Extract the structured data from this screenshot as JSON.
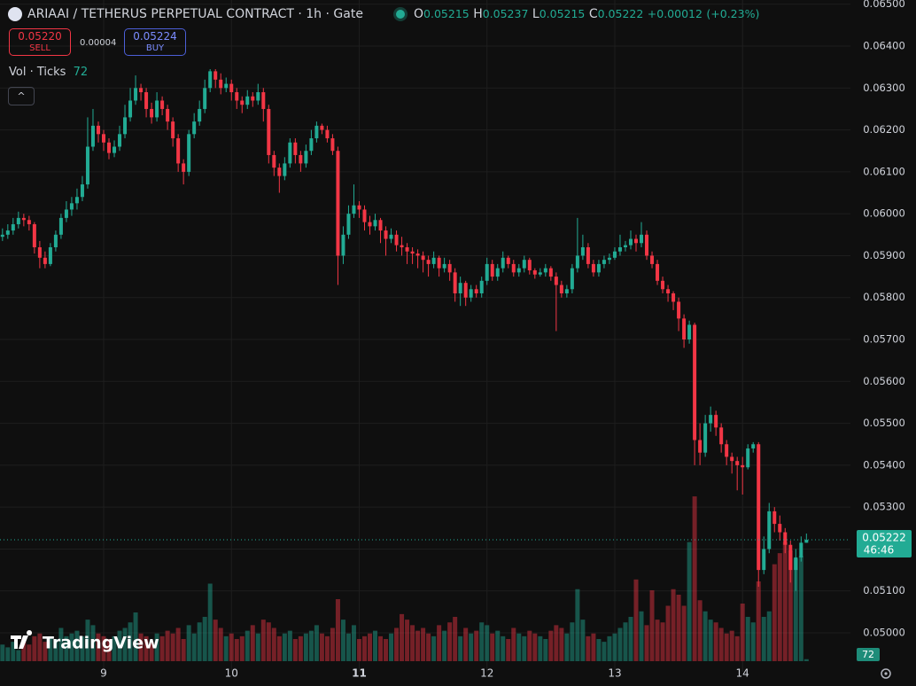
{
  "chart_data": {
    "type": "candlestick",
    "title": "ARIAAI / TETHERUS PERPETUAL CONTRACT · 1h · Gate",
    "ohlc_labels": [
      "O",
      "H",
      "L",
      "C"
    ],
    "change": "+0.00012",
    "change_pct": "(+0.23%)",
    "sell_price": "0.05220",
    "sell_label": "SELL",
    "spread": "0.00004",
    "buy_price": "0.05224",
    "buy_label": "BUY",
    "volume_label": "Vol · Ticks",
    "countdown": "46:46",
    "watermark": "TradingView",
    "up_color": "#22ab94",
    "down_color": "#f23645",
    "grid": true,
    "ylim": [
      0.04907,
      0.0651
    ],
    "yticks": [
      {
        "value": 0.05,
        "label": "0.05000"
      },
      {
        "value": 0.051,
        "label": "0.05100"
      },
      {
        "value": 0.052,
        "label": "0.05200"
      },
      {
        "value": 0.053,
        "label": "0.05300"
      },
      {
        "value": 0.054,
        "label": "0.05400"
      },
      {
        "value": 0.055,
        "label": "0.05500"
      },
      {
        "value": 0.056,
        "label": "0.05600"
      },
      {
        "value": 0.057,
        "label": "0.05700"
      },
      {
        "value": 0.058,
        "label": "0.05800"
      },
      {
        "value": 0.059,
        "label": "0.05900"
      },
      {
        "value": 0.06,
        "label": "0.06000"
      },
      {
        "value": 0.061,
        "label": "0.06100"
      },
      {
        "value": 0.062,
        "label": "0.06200"
      },
      {
        "value": 0.063,
        "label": "0.06300"
      },
      {
        "value": 0.064,
        "label": "0.06400"
      },
      {
        "value": 0.065,
        "label": "0.06500"
      }
    ],
    "vol_ylim": [
      0,
      8000
    ],
    "categories": [
      null,
      null,
      null,
      null,
      null,
      null,
      null,
      null,
      null,
      null,
      null,
      null,
      null,
      null,
      null,
      null,
      null,
      null,
      null,
      "9",
      null,
      null,
      null,
      null,
      null,
      null,
      null,
      null,
      null,
      null,
      null,
      null,
      null,
      null,
      null,
      null,
      null,
      null,
      null,
      null,
      null,
      null,
      null,
      "10",
      null,
      null,
      null,
      null,
      null,
      null,
      null,
      null,
      null,
      null,
      null,
      null,
      null,
      null,
      null,
      null,
      null,
      null,
      null,
      null,
      null,
      null,
      null,
      "11",
      null,
      null,
      null,
      null,
      null,
      null,
      null,
      null,
      null,
      null,
      null,
      null,
      null,
      null,
      null,
      null,
      null,
      null,
      null,
      null,
      null,
      null,
      null,
      "12",
      null,
      null,
      null,
      null,
      null,
      null,
      null,
      null,
      null,
      null,
      null,
      null,
      null,
      null,
      null,
      null,
      null,
      null,
      null,
      null,
      null,
      null,
      null,
      "13",
      null,
      null,
      null,
      null,
      null,
      null,
      null,
      null,
      null,
      null,
      null,
      null,
      null,
      null,
      null,
      null,
      null,
      null,
      null,
      null,
      null,
      null,
      null,
      "14",
      null,
      null,
      null,
      null,
      null,
      null,
      null,
      null,
      null,
      null,
      null,
      null
    ],
    "ohlc": [
      [
        0.05945,
        0.05965,
        0.05935,
        0.0595
      ],
      [
        0.0595,
        0.05975,
        0.0594,
        0.0596
      ],
      [
        0.0596,
        0.0599,
        0.0595,
        0.05975
      ],
      [
        0.05975,
        0.06005,
        0.05965,
        0.0599
      ],
      [
        0.0599,
        0.06,
        0.0597,
        0.05985
      ],
      [
        0.05985,
        0.05995,
        0.0596,
        0.05975
      ],
      [
        0.05975,
        0.0598,
        0.05905,
        0.0592
      ],
      [
        0.0592,
        0.05935,
        0.0587,
        0.05895
      ],
      [
        0.05895,
        0.0591,
        0.0587,
        0.0588
      ],
      [
        0.0588,
        0.0593,
        0.05875,
        0.0592
      ],
      [
        0.0592,
        0.0596,
        0.0591,
        0.0595
      ],
      [
        0.0595,
        0.06,
        0.0594,
        0.0599
      ],
      [
        0.0599,
        0.0603,
        0.0598,
        0.0601
      ],
      [
        0.0601,
        0.0604,
        0.05995,
        0.06025
      ],
      [
        0.06025,
        0.0606,
        0.0601,
        0.0604
      ],
      [
        0.0604,
        0.0609,
        0.0603,
        0.0607
      ],
      [
        0.0607,
        0.0623,
        0.0606,
        0.0616
      ],
      [
        0.0616,
        0.0625,
        0.0615,
        0.0621
      ],
      [
        0.0621,
        0.0622,
        0.0617,
        0.0619
      ],
      [
        0.0619,
        0.062,
        0.0615,
        0.0617
      ],
      [
        0.0617,
        0.0618,
        0.0613,
        0.06145
      ],
      [
        0.06145,
        0.06175,
        0.06135,
        0.0616
      ],
      [
        0.0616,
        0.0621,
        0.0615,
        0.0619
      ],
      [
        0.0619,
        0.0626,
        0.0618,
        0.0623
      ],
      [
        0.0623,
        0.063,
        0.0622,
        0.0627
      ],
      [
        0.0627,
        0.0633,
        0.0626,
        0.063
      ],
      [
        0.063,
        0.0631,
        0.0627,
        0.0629
      ],
      [
        0.0629,
        0.063,
        0.0623,
        0.0625
      ],
      [
        0.0625,
        0.06265,
        0.06215,
        0.0623
      ],
      [
        0.0623,
        0.0629,
        0.0622,
        0.0627
      ],
      [
        0.0627,
        0.0628,
        0.06235,
        0.0625
      ],
      [
        0.0625,
        0.0626,
        0.062,
        0.0622
      ],
      [
        0.0622,
        0.0623,
        0.0616,
        0.0618
      ],
      [
        0.0618,
        0.0619,
        0.061,
        0.0612
      ],
      [
        0.0612,
        0.0613,
        0.0607,
        0.061
      ],
      [
        0.061,
        0.062,
        0.0609,
        0.0619
      ],
      [
        0.0619,
        0.0624,
        0.0618,
        0.0622
      ],
      [
        0.0622,
        0.0627,
        0.0621,
        0.0625
      ],
      [
        0.0625,
        0.0632,
        0.0624,
        0.063
      ],
      [
        0.063,
        0.06345,
        0.0629,
        0.0634
      ],
      [
        0.0634,
        0.06345,
        0.063,
        0.0632
      ],
      [
        0.0632,
        0.06335,
        0.06285,
        0.063
      ],
      [
        0.063,
        0.06325,
        0.0629,
        0.0631
      ],
      [
        0.0631,
        0.0632,
        0.0627,
        0.0629
      ],
      [
        0.0629,
        0.063,
        0.0625,
        0.0627
      ],
      [
        0.0627,
        0.0628,
        0.0624,
        0.0626
      ],
      [
        0.0626,
        0.06295,
        0.0625,
        0.0628
      ],
      [
        0.0628,
        0.0629,
        0.06255,
        0.0627
      ],
      [
        0.0627,
        0.0631,
        0.0626,
        0.0629
      ],
      [
        0.0629,
        0.063,
        0.0622,
        0.0625
      ],
      [
        0.0625,
        0.0626,
        0.0612,
        0.0614
      ],
      [
        0.0614,
        0.0615,
        0.0609,
        0.0611
      ],
      [
        0.0611,
        0.0612,
        0.0605,
        0.0609
      ],
      [
        0.0609,
        0.06135,
        0.0608,
        0.0612
      ],
      [
        0.0612,
        0.0618,
        0.0611,
        0.0617
      ],
      [
        0.0617,
        0.0618,
        0.0612,
        0.0614
      ],
      [
        0.0614,
        0.0615,
        0.061,
        0.0612
      ],
      [
        0.0612,
        0.06165,
        0.0611,
        0.0615
      ],
      [
        0.0615,
        0.062,
        0.0614,
        0.0618
      ],
      [
        0.0618,
        0.0622,
        0.0617,
        0.0621
      ],
      [
        0.0621,
        0.06215,
        0.0619,
        0.062
      ],
      [
        0.062,
        0.0621,
        0.0617,
        0.0618
      ],
      [
        0.0618,
        0.0619,
        0.0614,
        0.0615
      ],
      [
        0.0615,
        0.0616,
        0.0583,
        0.059
      ],
      [
        0.059,
        0.0597,
        0.0588,
        0.0595
      ],
      [
        0.0595,
        0.0602,
        0.0594,
        0.06
      ],
      [
        0.06,
        0.0607,
        0.0599,
        0.0602
      ],
      [
        0.0602,
        0.0603,
        0.0599,
        0.0601
      ],
      [
        0.0601,
        0.0602,
        0.0596,
        0.0598
      ],
      [
        0.0598,
        0.05995,
        0.0595,
        0.0597
      ],
      [
        0.0597,
        0.06,
        0.0596,
        0.05985
      ],
      [
        0.05985,
        0.0599,
        0.0593,
        0.0596
      ],
      [
        0.0596,
        0.0597,
        0.059,
        0.0594
      ],
      [
        0.0594,
        0.05965,
        0.0593,
        0.0595
      ],
      [
        0.0595,
        0.0596,
        0.0591,
        0.05925
      ],
      [
        0.05925,
        0.05945,
        0.059,
        0.0592
      ],
      [
        0.0592,
        0.0593,
        0.0588,
        0.0591
      ],
      [
        0.0591,
        0.0592,
        0.0588,
        0.05905
      ],
      [
        0.05905,
        0.05915,
        0.0587,
        0.059
      ],
      [
        0.059,
        0.0591,
        0.0586,
        0.0589
      ],
      [
        0.0589,
        0.059,
        0.0585,
        0.0588
      ],
      [
        0.0588,
        0.0591,
        0.0587,
        0.05895
      ],
      [
        0.05895,
        0.059,
        0.0585,
        0.0587
      ],
      [
        0.0587,
        0.05895,
        0.0586,
        0.0588
      ],
      [
        0.0588,
        0.0589,
        0.0584,
        0.0586
      ],
      [
        0.0586,
        0.0587,
        0.0579,
        0.0581
      ],
      [
        0.0581,
        0.0585,
        0.0578,
        0.05835
      ],
      [
        0.05835,
        0.0584,
        0.0578,
        0.058
      ],
      [
        0.058,
        0.0583,
        0.0579,
        0.0582
      ],
      [
        0.0582,
        0.0583,
        0.058,
        0.0581
      ],
      [
        0.0581,
        0.0585,
        0.058,
        0.0584
      ],
      [
        0.0584,
        0.05895,
        0.0583,
        0.0588
      ],
      [
        0.0588,
        0.0589,
        0.0584,
        0.0585
      ],
      [
        0.0585,
        0.0588,
        0.0584,
        0.0587
      ],
      [
        0.0587,
        0.0591,
        0.0586,
        0.05895
      ],
      [
        0.05895,
        0.059,
        0.0587,
        0.0588
      ],
      [
        0.0588,
        0.0589,
        0.0585,
        0.0586
      ],
      [
        0.0586,
        0.0588,
        0.0585,
        0.0587
      ],
      [
        0.0587,
        0.059,
        0.0586,
        0.0589
      ],
      [
        0.0589,
        0.05895,
        0.05855,
        0.05865
      ],
      [
        0.05865,
        0.0587,
        0.05845,
        0.05855
      ],
      [
        0.05855,
        0.0587,
        0.0585,
        0.0586
      ],
      [
        0.0586,
        0.0588,
        0.0585,
        0.0587
      ],
      [
        0.0587,
        0.05875,
        0.0584,
        0.0585
      ],
      [
        0.0585,
        0.0586,
        0.0572,
        0.0583
      ],
      [
        0.0583,
        0.0584,
        0.058,
        0.0581
      ],
      [
        0.0581,
        0.0583,
        0.058,
        0.0582
      ],
      [
        0.0582,
        0.0588,
        0.0581,
        0.0587
      ],
      [
        0.0587,
        0.0599,
        0.0586,
        0.059
      ],
      [
        0.059,
        0.0595,
        0.0589,
        0.0592
      ],
      [
        0.0592,
        0.0593,
        0.0587,
        0.0588
      ],
      [
        0.0588,
        0.0589,
        0.0585,
        0.0586
      ],
      [
        0.0586,
        0.0589,
        0.0585,
        0.0588
      ],
      [
        0.0588,
        0.059,
        0.0587,
        0.0589
      ],
      [
        0.0589,
        0.05905,
        0.0588,
        0.05895
      ],
      [
        0.05895,
        0.0592,
        0.0589,
        0.0591
      ],
      [
        0.0591,
        0.0595,
        0.059,
        0.0592
      ],
      [
        0.0592,
        0.05935,
        0.0591,
        0.05925
      ],
      [
        0.05925,
        0.0596,
        0.05915,
        0.0594
      ],
      [
        0.0594,
        0.0595,
        0.0591,
        0.0593
      ],
      [
        0.0593,
        0.0598,
        0.0592,
        0.0595
      ],
      [
        0.0595,
        0.0596,
        0.0589,
        0.059
      ],
      [
        0.059,
        0.0591,
        0.0587,
        0.0588
      ],
      [
        0.0588,
        0.0589,
        0.0583,
        0.0584
      ],
      [
        0.0584,
        0.0585,
        0.0581,
        0.0582
      ],
      [
        0.0582,
        0.0583,
        0.0579,
        0.0581
      ],
      [
        0.0581,
        0.05815,
        0.0577,
        0.0579
      ],
      [
        0.0579,
        0.058,
        0.0572,
        0.0575
      ],
      [
        0.0575,
        0.0576,
        0.0568,
        0.057
      ],
      [
        0.057,
        0.05745,
        0.0569,
        0.05735
      ],
      [
        0.05735,
        0.0574,
        0.054,
        0.0546
      ],
      [
        0.0546,
        0.055,
        0.054,
        0.0543
      ],
      [
        0.0543,
        0.0552,
        0.0542,
        0.055
      ],
      [
        0.055,
        0.0554,
        0.0548,
        0.0552
      ],
      [
        0.0552,
        0.0553,
        0.0547,
        0.0549
      ],
      [
        0.0549,
        0.055,
        0.0543,
        0.0545
      ],
      [
        0.0545,
        0.0546,
        0.054,
        0.0542
      ],
      [
        0.0542,
        0.0543,
        0.0538,
        0.0541
      ],
      [
        0.0541,
        0.0542,
        0.0534,
        0.054
      ],
      [
        0.054,
        0.0542,
        0.0533,
        0.05395
      ],
      [
        0.05395,
        0.0545,
        0.0539,
        0.0544
      ],
      [
        0.0544,
        0.05455,
        0.0543,
        0.0545
      ],
      [
        0.0545,
        0.05455,
        0.0511,
        0.0515
      ],
      [
        0.0515,
        0.0523,
        0.0514,
        0.052
      ],
      [
        0.052,
        0.0531,
        0.0519,
        0.0529
      ],
      [
        0.0529,
        0.053,
        0.0524,
        0.0526
      ],
      [
        0.0526,
        0.0528,
        0.0522,
        0.0524
      ],
      [
        0.0524,
        0.0525,
        0.0519,
        0.0521
      ],
      [
        0.0521,
        0.0522,
        0.0512,
        0.0515
      ],
      [
        0.0515,
        0.052,
        0.051,
        0.0518
      ],
      [
        0.0518,
        0.0523,
        0.0517,
        0.05215
      ],
      [
        0.05215,
        0.05237,
        0.05215,
        0.05222
      ]
    ],
    "volume": [
      600,
      500,
      700,
      400,
      800,
      600,
      900,
      1000,
      700,
      900,
      800,
      1200,
      900,
      1000,
      1100,
      900,
      1500,
      1300,
      1000,
      900,
      800,
      900,
      1100,
      1200,
      1400,
      1760,
      1000,
      900,
      700,
      1000,
      900,
      1100,
      1000,
      1200,
      800,
      1300,
      1000,
      1400,
      1600,
      2800,
      1500,
      1200,
      900,
      1000,
      800,
      900,
      1100,
      1300,
      1000,
      1500,
      1400,
      1200,
      900,
      1000,
      1100,
      800,
      900,
      1000,
      1100,
      1300,
      1000,
      900,
      1200,
      2240,
      1500,
      1000,
      1300,
      800,
      900,
      1000,
      1100,
      900,
      800,
      1000,
      1200,
      1700,
      1500,
      1300,
      1100,
      1200,
      1000,
      900,
      1300,
      1100,
      1400,
      1600,
      900,
      1200,
      1000,
      1100,
      1400,
      1300,
      1000,
      1100,
      900,
      800,
      1200,
      1000,
      900,
      1100,
      1000,
      900,
      800,
      1100,
      1300,
      1200,
      1000,
      1400,
      2600,
      1500,
      900,
      1000,
      800,
      700,
      900,
      1000,
      1200,
      1400,
      1600,
      2950,
      1800,
      1300,
      2560,
      1500,
      1400,
      2000,
      2600,
      2400,
      2000,
      4300,
      5950,
      2200,
      1800,
      1500,
      1400,
      1200,
      1000,
      1100,
      900,
      2080,
      1600,
      1400,
      2880,
      1600,
      1800,
      3500,
      3900,
      4300,
      4000,
      3700,
      3800,
      72
    ]
  }
}
